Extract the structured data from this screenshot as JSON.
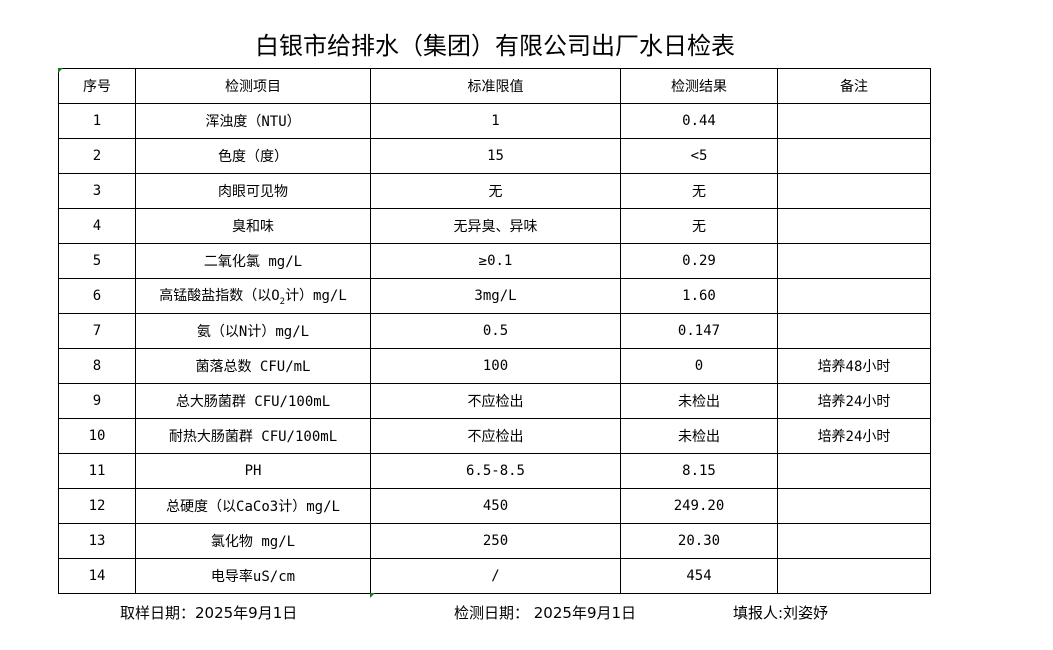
{
  "title": "白银市给排水（集团）有限公司出厂水日检表",
  "table": {
    "headers": [
      "序号",
      "检测项目",
      "标准限值",
      "检测结果",
      "备注"
    ],
    "rows": [
      {
        "no": "1",
        "item": "浑浊度（NTU）",
        "limit": "1",
        "result": "0.44",
        "note": ""
      },
      {
        "no": "2",
        "item": "色度（度）",
        "limit": "15",
        "result": "<5",
        "note": ""
      },
      {
        "no": "3",
        "item": "肉眼可见物",
        "limit": "无",
        "result": "无",
        "note": ""
      },
      {
        "no": "4",
        "item": "臭和味",
        "limit": "无异臭、异味",
        "result": "无",
        "note": ""
      },
      {
        "no": "5",
        "item": "二氧化氯 mg/L",
        "limit": "≥0.1",
        "result": "0.29",
        "note": ""
      },
      {
        "no": "6",
        "item": "高锰酸盐指数（以O",
        "item_sub": "2",
        "item_tail": "计）mg/L",
        "limit": "3mg/L",
        "result": "1.60",
        "note": ""
      },
      {
        "no": "7",
        "item": "氨（以N计）mg/L",
        "limit": "0.5",
        "result": "0.147",
        "note": ""
      },
      {
        "no": "8",
        "item": "菌落总数 CFU/mL",
        "limit": "100",
        "result": "0",
        "note": "培养48小时"
      },
      {
        "no": "9",
        "item": "总大肠菌群 CFU/100mL",
        "limit": "不应检出",
        "result": "未检出",
        "note": "培养24小时"
      },
      {
        "no": "10",
        "item": "耐热大肠菌群 CFU/100mL",
        "limit": "不应检出",
        "result": "未检出",
        "note": "培养24小时"
      },
      {
        "no": "11",
        "item": "PH",
        "limit": "6.5-8.5",
        "result": "8.15",
        "note": ""
      },
      {
        "no": "12",
        "item": "总硬度（以CaCo3计）mg/L",
        "limit": "450",
        "result": "249.20",
        "note": ""
      },
      {
        "no": "13",
        "item": "氯化物 mg/L",
        "limit": "250",
        "result": "20.30",
        "note": ""
      },
      {
        "no": "14",
        "item": "电导率uS/cm",
        "limit": "/",
        "result": "454",
        "note": ""
      }
    ]
  },
  "footer": {
    "sample_date": "取样日期：2025年9月1日",
    "test_date": "检测日期： 2025年9月1日",
    "reporter": "填报人:刘姿妤"
  }
}
